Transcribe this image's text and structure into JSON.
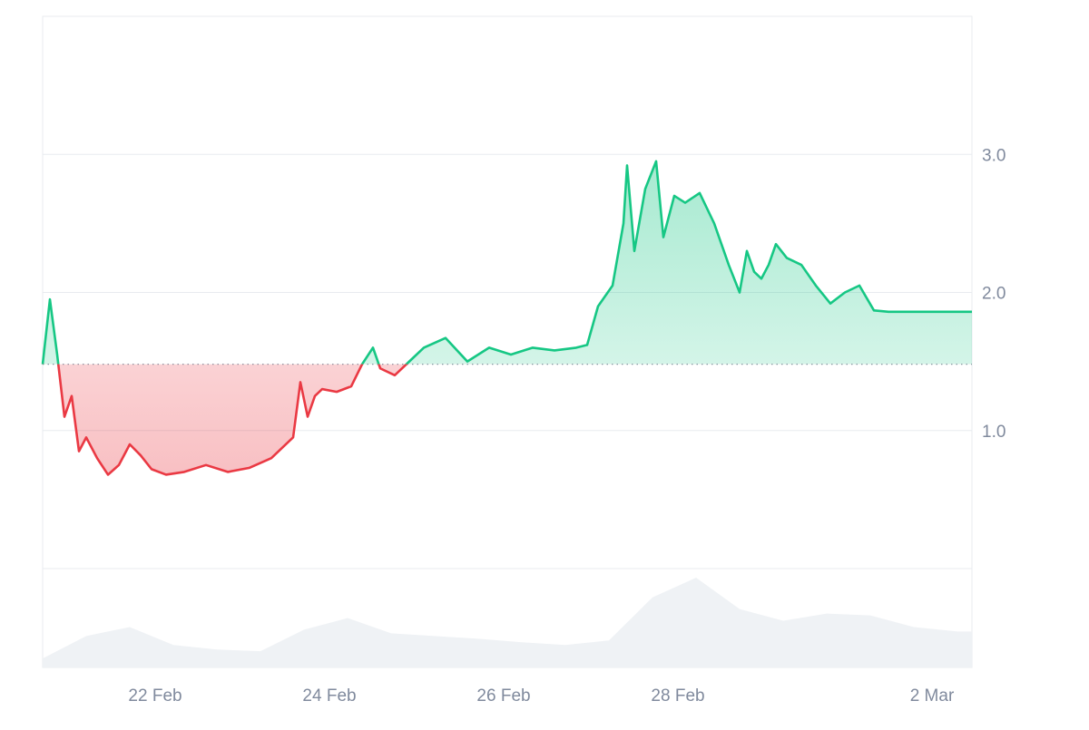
{
  "chart_data": {
    "type": "area",
    "title": "",
    "xlabel": "",
    "ylabel": "",
    "x_tick_labels": [
      "22 Feb",
      "24 Feb",
      "26 Feb",
      "28 Feb",
      "2 Mar"
    ],
    "y_tick_labels": [
      "1.0",
      "2.0",
      "3.0"
    ],
    "y_ticks": [
      1.0,
      2.0,
      3.0
    ],
    "ylim": [
      0.0,
      4.0
    ],
    "baseline": 1.48,
    "grid": true,
    "colors": {
      "above": "#16c784",
      "below": "#ea3943",
      "volume": "#eff2f5",
      "grid": "#e8ebef",
      "text": "#808a9d",
      "baseline": "#808a9d"
    },
    "price_series": {
      "name": "",
      "x": [
        "2024-02-20 17:00",
        "2024-02-20 19:00",
        "2024-02-20 21:00",
        "2024-02-20 23:00",
        "2024-02-21 01:00",
        "2024-02-21 03:00",
        "2024-02-21 05:00",
        "2024-02-21 08:00",
        "2024-02-21 11:00",
        "2024-02-21 14:00",
        "2024-02-21 17:00",
        "2024-02-21 20:00",
        "2024-02-21 23:00",
        "2024-02-22 03:00",
        "2024-02-22 08:00",
        "2024-02-22 14:00",
        "2024-02-22 20:00",
        "2024-02-23 02:00",
        "2024-02-23 08:00",
        "2024-02-23 14:00",
        "2024-02-23 16:00",
        "2024-02-23 18:00",
        "2024-02-23 20:00",
        "2024-02-23 22:00",
        "2024-02-24 02:00",
        "2024-02-24 06:00",
        "2024-02-24 09:00",
        "2024-02-24 12:00",
        "2024-02-24 14:00",
        "2024-02-24 18:00",
        "2024-02-24 22:00",
        "2024-02-25 02:00",
        "2024-02-25 08:00",
        "2024-02-25 14:00",
        "2024-02-25 20:00",
        "2024-02-26 02:00",
        "2024-02-26 08:00",
        "2024-02-26 14:00",
        "2024-02-26 20:00",
        "2024-02-26 23:00",
        "2024-02-27 02:00",
        "2024-02-27 06:00",
        "2024-02-27 09:00",
        "2024-02-27 10:00",
        "2024-02-27 12:00",
        "2024-02-27 15:00",
        "2024-02-27 18:00",
        "2024-02-27 20:00",
        "2024-02-27 23:00",
        "2024-02-28 02:00",
        "2024-02-28 06:00",
        "2024-02-28 10:00",
        "2024-02-28 14:00",
        "2024-02-28 17:00",
        "2024-02-28 19:00",
        "2024-02-28 21:00",
        "2024-02-28 23:00",
        "2024-02-29 01:00",
        "2024-02-29 03:00",
        "2024-02-29 06:00",
        "2024-02-29 10:00",
        "2024-02-29 14:00",
        "2024-02-29 18:00",
        "2024-02-29 22:00",
        "2024-03-01 02:00",
        "2024-03-01 06:00",
        "2024-03-01 10:00",
        "2024-03-01 14:00",
        "2024-03-01 18:00",
        "2024-03-01 22:00",
        "2024-03-02 02:00",
        "2024-03-02 06:00",
        "2024-03-02 09:00"
      ],
      "y": [
        1.48,
        1.95,
        1.55,
        1.1,
        1.25,
        0.85,
        0.95,
        0.8,
        0.68,
        0.75,
        0.9,
        0.82,
        0.72,
        0.68,
        0.7,
        0.75,
        0.7,
        0.73,
        0.8,
        0.95,
        1.35,
        1.1,
        1.25,
        1.3,
        1.28,
        1.32,
        1.48,
        1.6,
        1.45,
        1.4,
        1.5,
        1.6,
        1.67,
        1.5,
        1.6,
        1.55,
        1.6,
        1.58,
        1.6,
        1.62,
        1.9,
        2.05,
        2.5,
        2.92,
        2.3,
        2.75,
        2.95,
        2.4,
        2.7,
        2.65,
        2.72,
        2.5,
        2.2,
        2.0,
        2.3,
        2.15,
        2.1,
        2.2,
        2.35,
        2.25,
        2.2,
        2.05,
        1.92,
        2.0,
        2.05,
        1.87,
        1.86,
        1.86,
        1.86,
        1.86,
        1.86,
        1.86,
        1.86
      ]
    },
    "volume_series": {
      "name": "",
      "x": [
        "2024-02-20 17:00",
        "2024-02-21 05:00",
        "2024-02-21 17:00",
        "2024-02-22 05:00",
        "2024-02-22 17:00",
        "2024-02-23 05:00",
        "2024-02-23 17:00",
        "2024-02-24 05:00",
        "2024-02-24 17:00",
        "2024-02-25 05:00",
        "2024-02-25 17:00",
        "2024-02-26 05:00",
        "2024-02-26 17:00",
        "2024-02-27 05:00",
        "2024-02-27 17:00",
        "2024-02-28 05:00",
        "2024-02-28 17:00",
        "2024-02-29 05:00",
        "2024-02-29 17:00",
        "2024-03-01 05:00",
        "2024-03-01 17:00",
        "2024-03-02 05:00"
      ],
      "y": [
        0.1,
        0.35,
        0.45,
        0.25,
        0.2,
        0.18,
        0.42,
        0.55,
        0.38,
        0.35,
        0.32,
        0.28,
        0.25,
        0.3,
        0.78,
        1.0,
        0.65,
        0.52,
        0.6,
        0.58,
        0.45,
        0.4
      ]
    }
  }
}
